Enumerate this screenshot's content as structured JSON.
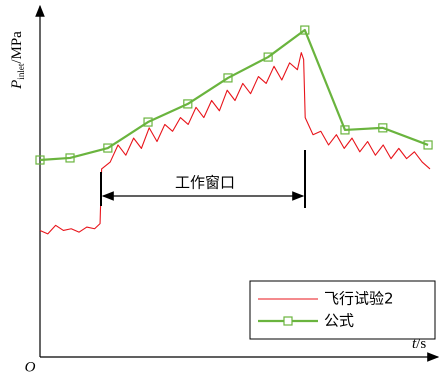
{
  "chart_data": {
    "type": "line",
    "y_label": {
      "symbol": "P",
      "subscript": "inlet",
      "unit": "/MPa"
    },
    "x_label": {
      "symbol": "t",
      "unit": "/s"
    },
    "origin_label": "O",
    "annotation": "工作窗口",
    "xlim": [
      0,
      100
    ],
    "ylim": [
      0,
      100
    ],
    "series": [
      {
        "name": "飞行试验2",
        "color": "#e8141b",
        "marker": "none",
        "x": [
          0,
          2,
          4,
          6,
          8,
          10,
          12,
          14,
          15.4,
          15.8,
          18,
          20,
          22,
          24,
          26,
          28,
          30,
          32,
          34,
          36,
          38,
          40,
          42,
          44,
          46,
          48,
          50,
          52,
          54,
          56,
          58,
          60,
          62,
          64,
          66,
          67,
          67.6,
          68,
          70,
          72,
          74,
          76,
          78,
          80,
          82,
          84,
          86,
          88,
          90,
          92,
          94,
          96,
          98,
          100
        ],
        "values": [
          37,
          36,
          38.5,
          37,
          37.5,
          36.5,
          38,
          37.5,
          39,
          55,
          57,
          62,
          59,
          64,
          61,
          67,
          63,
          68,
          66,
          70,
          68,
          73,
          70,
          75,
          72,
          78,
          75,
          80,
          77,
          82,
          80,
          85,
          81,
          86,
          84,
          89,
          87,
          70,
          65,
          66,
          62,
          65,
          61,
          64,
          60,
          63,
          59,
          62,
          58,
          61,
          58,
          60,
          57,
          55
        ]
      },
      {
        "name": "公式",
        "color": "#6ab43e",
        "marker": "square",
        "x": [
          0,
          7.7,
          17.4,
          27.7,
          37.9,
          48.2,
          58.5,
          67.9,
          78.2,
          87.9,
          99.5
        ],
        "values": [
          57.6,
          58.2,
          61.1,
          68.7,
          74,
          81.6,
          87.7,
          95.6,
          66.4,
          67,
          62
        ]
      }
    ]
  }
}
